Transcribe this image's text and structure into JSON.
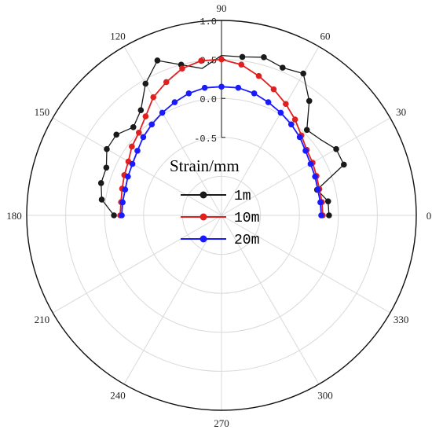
{
  "chart_data": {
    "type": "polar-line",
    "angle_unit": "degrees",
    "angle_ticks": [
      "0",
      "30",
      "60",
      "90",
      "120",
      "150",
      "180",
      "210",
      "240",
      "270",
      "300",
      "330"
    ],
    "angle_tick_values": [
      0,
      30,
      60,
      90,
      120,
      150,
      180,
      210,
      240,
      270,
      300,
      330
    ],
    "radial_ticks": [
      "-0.5",
      "0.0",
      "0.5",
      "1.0"
    ],
    "radial_tick_values": [
      -0.5,
      0.0,
      0.5,
      1.0
    ],
    "rlim": [
      -1.5,
      1.0
    ],
    "grid": true,
    "legend_title": "Strain/mm",
    "legend_position": "center",
    "series": [
      {
        "name": "1m",
        "color": "#1a1a1a",
        "theta": [
          0,
          7.5,
          15,
          22.5,
          30,
          37.5,
          45,
          52.5,
          60,
          67.5,
          75,
          82.5,
          90,
          97.5,
          105,
          112.5,
          120,
          127.5,
          135,
          142.5,
          150,
          157.5,
          165,
          172.5,
          180
        ],
        "r": [
          -0.12,
          -0.12,
          -0.23,
          0.2,
          0.2,
          0.1,
          0.05,
          0.35,
          0.6,
          0.55,
          0.6,
          0.55,
          0.55,
          0.4,
          0.5,
          0.65,
          0.45,
          0.2,
          0.1,
          0.2,
          0.2,
          0.1,
          0.1,
          0.05,
          -0.12
        ],
        "markers_theta": [
          0,
          7.5,
          15,
          22.5,
          30,
          45,
          52.5,
          60,
          67.5,
          75,
          82.5,
          105,
          112.5,
          120,
          127.5,
          135,
          142.5,
          150,
          157.5,
          165,
          172.5,
          180
        ],
        "markers_r": [
          -0.12,
          -0.12,
          -0.23,
          0.2,
          0.2,
          0.05,
          0.35,
          0.6,
          0.55,
          0.6,
          0.55,
          0.5,
          0.65,
          0.45,
          0.2,
          0.1,
          0.2,
          0.2,
          0.1,
          0.1,
          0.05,
          -0.12
        ]
      },
      {
        "name": "10m",
        "color": "#e02020",
        "theta": [
          0,
          7.5,
          15,
          22.5,
          30,
          37.5,
          45,
          52.5,
          60,
          67.5,
          75,
          82.5,
          90,
          97.5,
          105,
          112.5,
          120,
          127.5,
          135,
          142.5,
          150,
          157.5,
          165,
          172.5,
          180
        ],
        "r": [
          -0.2,
          -0.2,
          -0.2,
          -0.18,
          -0.15,
          -0.12,
          -0.05,
          0.05,
          0.15,
          0.25,
          0.35,
          0.45,
          0.5,
          0.5,
          0.45,
          0.35,
          0.25,
          0.1,
          0.0,
          -0.05,
          -0.12,
          -0.15,
          -0.18,
          -0.2,
          -0.2
        ],
        "markers_theta": [
          0,
          7.5,
          15,
          22.5,
          30,
          37.5,
          45,
          52.5,
          60,
          67.5,
          75,
          82.5,
          90,
          97.5,
          105,
          112.5,
          120,
          127.5,
          135,
          142.5,
          150,
          157.5,
          165,
          172.5,
          180
        ],
        "markers_r": [
          -0.2,
          -0.2,
          -0.2,
          -0.18,
          -0.15,
          -0.12,
          -0.05,
          0.05,
          0.15,
          0.25,
          0.35,
          0.45,
          0.5,
          0.5,
          0.45,
          0.35,
          0.25,
          0.1,
          0.0,
          -0.05,
          -0.12,
          -0.15,
          -0.18,
          -0.2,
          -0.2
        ]
      },
      {
        "name": "20m",
        "color": "#1a1aff",
        "theta": [
          0,
          7.5,
          15,
          22.5,
          30,
          37.5,
          45,
          52.5,
          60,
          67.5,
          75,
          82.5,
          90,
          97.5,
          105,
          112.5,
          120,
          127.5,
          135,
          142.5,
          150,
          157.5,
          165,
          172.5,
          180
        ],
        "r": [
          -0.22,
          -0.22,
          -0.22,
          -0.2,
          -0.18,
          -0.14,
          -0.08,
          -0.03,
          0.02,
          0.07,
          0.12,
          0.15,
          0.15,
          0.15,
          0.12,
          0.07,
          0.02,
          -0.03,
          -0.08,
          -0.14,
          -0.18,
          -0.2,
          -0.22,
          -0.22,
          -0.22
        ],
        "markers_theta": [
          0,
          7.5,
          15,
          22.5,
          30,
          37.5,
          45,
          52.5,
          60,
          67.5,
          75,
          82.5,
          90,
          97.5,
          105,
          112.5,
          120,
          127.5,
          135,
          142.5,
          150,
          157.5,
          165,
          172.5,
          180
        ],
        "markers_r": [
          -0.22,
          -0.22,
          -0.22,
          -0.2,
          -0.18,
          -0.14,
          -0.08,
          -0.03,
          0.02,
          0.07,
          0.12,
          0.15,
          0.15,
          0.15,
          0.12,
          0.07,
          0.02,
          -0.03,
          -0.08,
          -0.14,
          -0.18,
          -0.2,
          -0.22,
          -0.22,
          -0.22
        ]
      }
    ]
  }
}
